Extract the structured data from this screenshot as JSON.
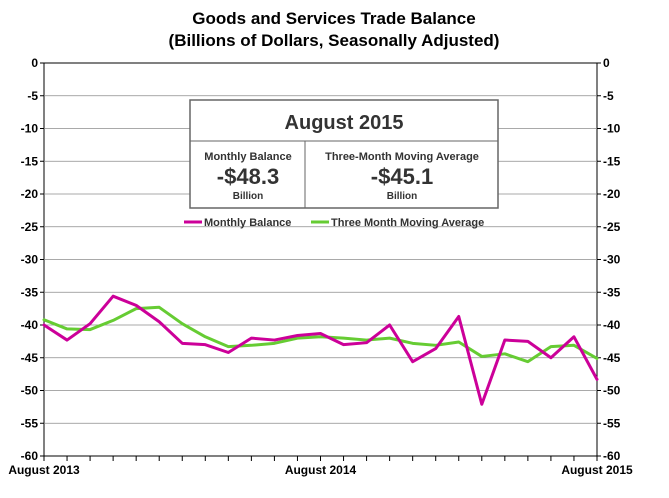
{
  "chart_data": {
    "type": "line",
    "title": "Goods and Services Trade Balance",
    "subtitle": "(Billions of Dollars, Seasonally Adjusted)",
    "ylim": [
      -60,
      0
    ],
    "yticks": [
      "0",
      "-5",
      "-10",
      "-15",
      "-20",
      "-25",
      "-30",
      "-35",
      "-40",
      "-45",
      "-50",
      "-55",
      "-60"
    ],
    "ytick_values": [
      0,
      -5,
      -10,
      -15,
      -20,
      -25,
      -30,
      -35,
      -40,
      -45,
      -50,
      -55,
      -60
    ],
    "x_count": 25,
    "x_labels": [
      {
        "index": 0,
        "text": "August 2013"
      },
      {
        "index": 12,
        "text": "August 2014"
      },
      {
        "index": 24,
        "text": "August 2015"
      }
    ],
    "grid": true,
    "series": [
      {
        "name": "Monthly Balance",
        "color": "#cc0099",
        "values": [
          -40.0,
          -42.3,
          -39.8,
          -35.6,
          -37.0,
          -39.5,
          -42.8,
          -43.0,
          -44.2,
          -42.0,
          -42.3,
          -41.6,
          -41.3,
          -43.0,
          -42.7,
          -40.0,
          -45.6,
          -43.6,
          -38.7,
          -52.1,
          -42.3,
          -42.5,
          -45.0,
          -41.8,
          -48.3
        ]
      },
      {
        "name": "Three Month Moving Average",
        "color": "#66cc33",
        "values": [
          -39.2,
          -40.6,
          -40.7,
          -39.3,
          -37.5,
          -37.3,
          -39.8,
          -41.8,
          -43.3,
          -43.1,
          -42.8,
          -42.0,
          -41.8,
          -42.0,
          -42.3,
          -42.0,
          -42.8,
          -43.1,
          -42.6,
          -44.8,
          -44.4,
          -45.6,
          -43.3,
          -43.1,
          -45.1
        ]
      }
    ],
    "infobox": {
      "title": "August 2015",
      "left_label": "Monthly Balance",
      "left_value": "-$48.3",
      "left_unit": "Billion",
      "right_label": "Three-Month Moving Average",
      "right_value": "-$45.1",
      "right_unit": "Billion"
    },
    "legend": [
      {
        "name": "Monthly Balance",
        "color": "#cc0099"
      },
      {
        "name": "Three Month Moving Average",
        "color": "#66cc33"
      }
    ]
  }
}
